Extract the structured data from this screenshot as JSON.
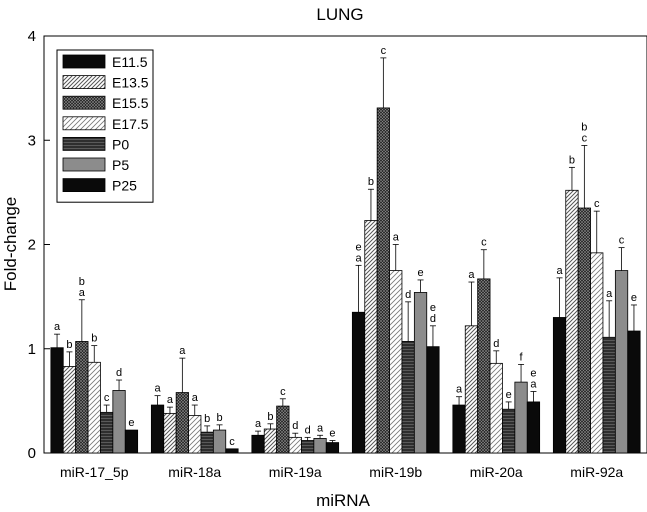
{
  "chart_data": {
    "type": "bar",
    "title": "LUNG",
    "xlabel": "miRNA",
    "ylabel": "Fold-change",
    "ylim": [
      0,
      4
    ],
    "yticks": [
      "0",
      "1",
      "2",
      "3",
      "4"
    ],
    "categories": [
      "miR-17_5p",
      "miR-18a",
      "miR-19a",
      "miR-19b",
      "miR-20a",
      "miR-92a"
    ],
    "legend_position": "top-left",
    "series": [
      {
        "name": "E11.5",
        "pattern": "solid-black",
        "values": [
          1.01,
          0.46,
          0.17,
          1.35,
          0.46,
          1.3
        ],
        "errors": [
          0.13,
          0.09,
          0.04,
          0.45,
          0.08,
          0.38
        ],
        "letters": [
          [
            "a"
          ],
          [
            "a"
          ],
          [
            "a"
          ],
          [
            "e",
            "a"
          ],
          [
            "a"
          ],
          [
            "a"
          ]
        ]
      },
      {
        "name": "E13.5",
        "pattern": "diagonal-light",
        "values": [
          0.83,
          0.38,
          0.23,
          2.23,
          1.22,
          2.52
        ],
        "errors": [
          0.14,
          0.06,
          0.05,
          0.3,
          0.42,
          0.22
        ],
        "letters": [
          [
            "b"
          ],
          [
            "a"
          ],
          [
            "b"
          ],
          [
            "b"
          ],
          [
            "a"
          ],
          [
            "b"
          ]
        ]
      },
      {
        "name": "E15.5",
        "pattern": "crosshatch-dark",
        "values": [
          1.07,
          0.58,
          0.45,
          3.31,
          1.67,
          2.35
        ],
        "errors": [
          0.4,
          0.33,
          0.07,
          0.48,
          0.28,
          0.6
        ],
        "letters": [
          [
            "b",
            "a"
          ],
          [
            "a"
          ],
          [
            "c"
          ],
          [
            "c"
          ],
          [
            "c"
          ],
          [
            "b",
            "c"
          ]
        ]
      },
      {
        "name": "E17.5",
        "pattern": "diagonal-white",
        "values": [
          0.87,
          0.36,
          0.15,
          1.75,
          0.86,
          1.92
        ],
        "errors": [
          0.16,
          0.1,
          0.04,
          0.25,
          0.12,
          0.4
        ],
        "letters": [
          [
            "b"
          ],
          [
            "a"
          ],
          [
            "d"
          ],
          [
            "a"
          ],
          [
            "d"
          ],
          [
            "c"
          ]
        ]
      },
      {
        "name": "P0",
        "pattern": "dense-dark",
        "values": [
          0.39,
          0.2,
          0.12,
          1.07,
          0.42,
          1.11
        ],
        "errors": [
          0.07,
          0.06,
          0.03,
          0.38,
          0.07,
          0.35
        ],
        "letters": [
          [
            "c"
          ],
          [
            "b"
          ],
          [
            "d"
          ],
          [
            "d"
          ],
          [
            "e"
          ],
          [
            "a"
          ]
        ]
      },
      {
        "name": "P5",
        "pattern": "solid-gray",
        "values": [
          0.6,
          0.22,
          0.14,
          1.54,
          0.68,
          1.75
        ],
        "errors": [
          0.1,
          0.05,
          0.03,
          0.12,
          0.17,
          0.22
        ],
        "letters": [
          [
            "d"
          ],
          [
            "b"
          ],
          [
            "a"
          ],
          [
            "e"
          ],
          [
            "f"
          ],
          [
            "c"
          ]
        ]
      },
      {
        "name": "P25",
        "pattern": "solid-black",
        "values": [
          0.22,
          0.04,
          0.1,
          1.02,
          0.49,
          1.17
        ],
        "errors": [
          0.0,
          0.0,
          0.02,
          0.2,
          0.1,
          0.25
        ],
        "letters": [
          [
            "e"
          ],
          [
            "c"
          ],
          [
            "e"
          ],
          [
            "e",
            "d"
          ],
          [
            "e",
            "a"
          ],
          [
            "e"
          ]
        ]
      }
    ]
  }
}
